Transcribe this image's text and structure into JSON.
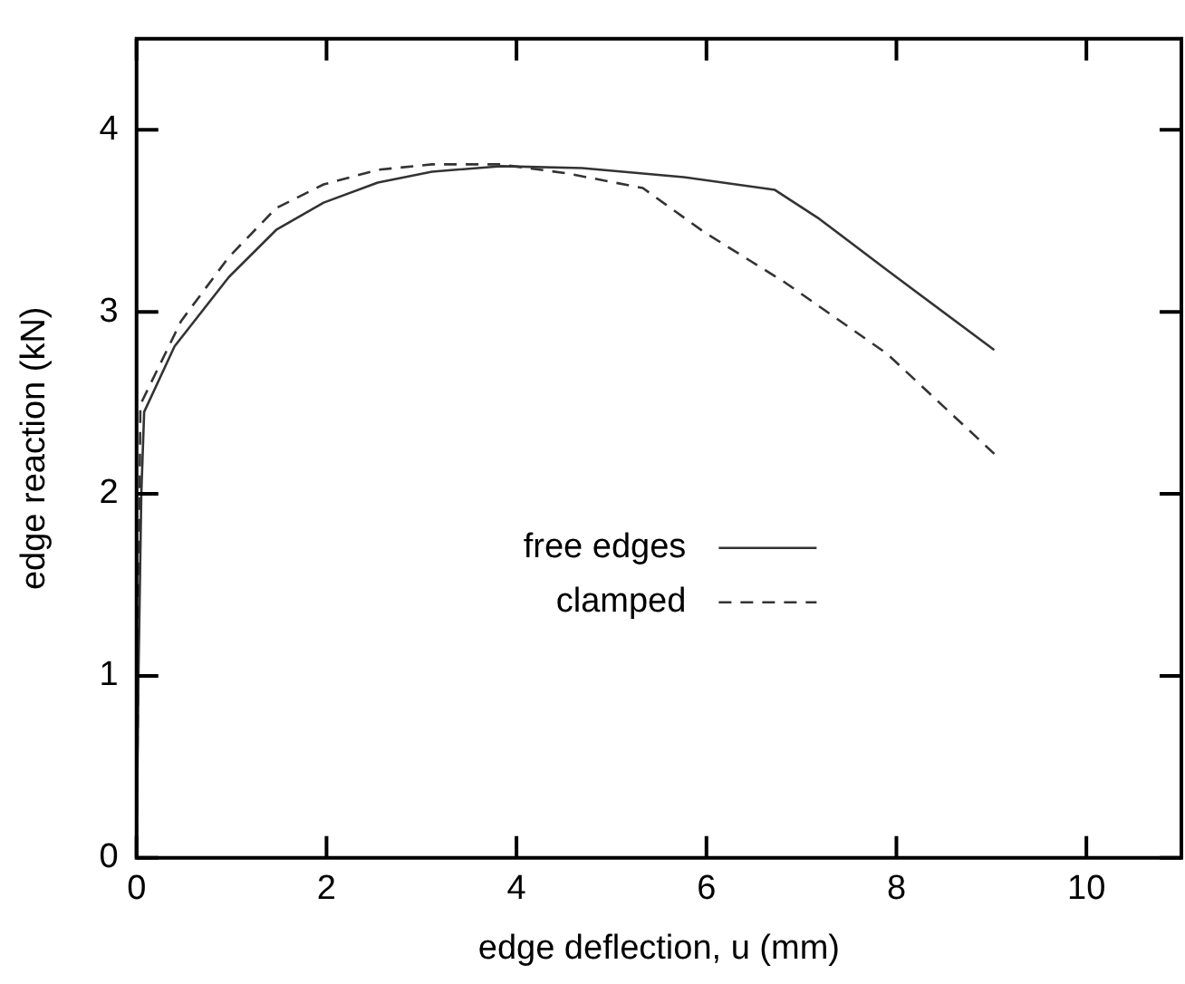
{
  "chart_data": {
    "type": "line",
    "xlabel": "edge deflection, u (mm)",
    "ylabel": "edge reaction (kN)",
    "xlim": [
      0,
      11
    ],
    "xticks": [
      0,
      2,
      4,
      6,
      8,
      10
    ],
    "ylim": [
      0,
      4.5
    ],
    "yticks": [
      0,
      1,
      2,
      3,
      4
    ],
    "grid": false,
    "legend": "center",
    "marker": "none",
    "series": [
      {
        "name": "free edges",
        "color": "#333333",
        "line_style": "solid",
        "x": [
          0,
          0.02,
          0.05,
          0.08,
          0.4,
          0.97,
          1.47,
          1.97,
          2.54,
          3.11,
          3.83,
          4.69,
          5.76,
          6.72,
          7.19,
          7.9,
          9.03
        ],
        "values": [
          0,
          1.0,
          2.0,
          2.45,
          2.81,
          3.19,
          3.45,
          3.6,
          3.71,
          3.77,
          3.8,
          3.79,
          3.74,
          3.67,
          3.51,
          3.23,
          2.79
        ]
      },
      {
        "name": "clamped",
        "color": "#333333",
        "line_style": "dashed",
        "x": [
          0,
          0.02,
          0.04,
          0.47,
          0.97,
          1.47,
          1.97,
          2.54,
          3.11,
          3.83,
          4.54,
          5.33,
          5.97,
          6.83,
          7.9,
          9.03
        ],
        "values": [
          0,
          1.2,
          2.49,
          2.95,
          3.3,
          3.57,
          3.7,
          3.78,
          3.81,
          3.81,
          3.76,
          3.68,
          3.44,
          3.16,
          2.77,
          2.22
        ]
      }
    ]
  }
}
